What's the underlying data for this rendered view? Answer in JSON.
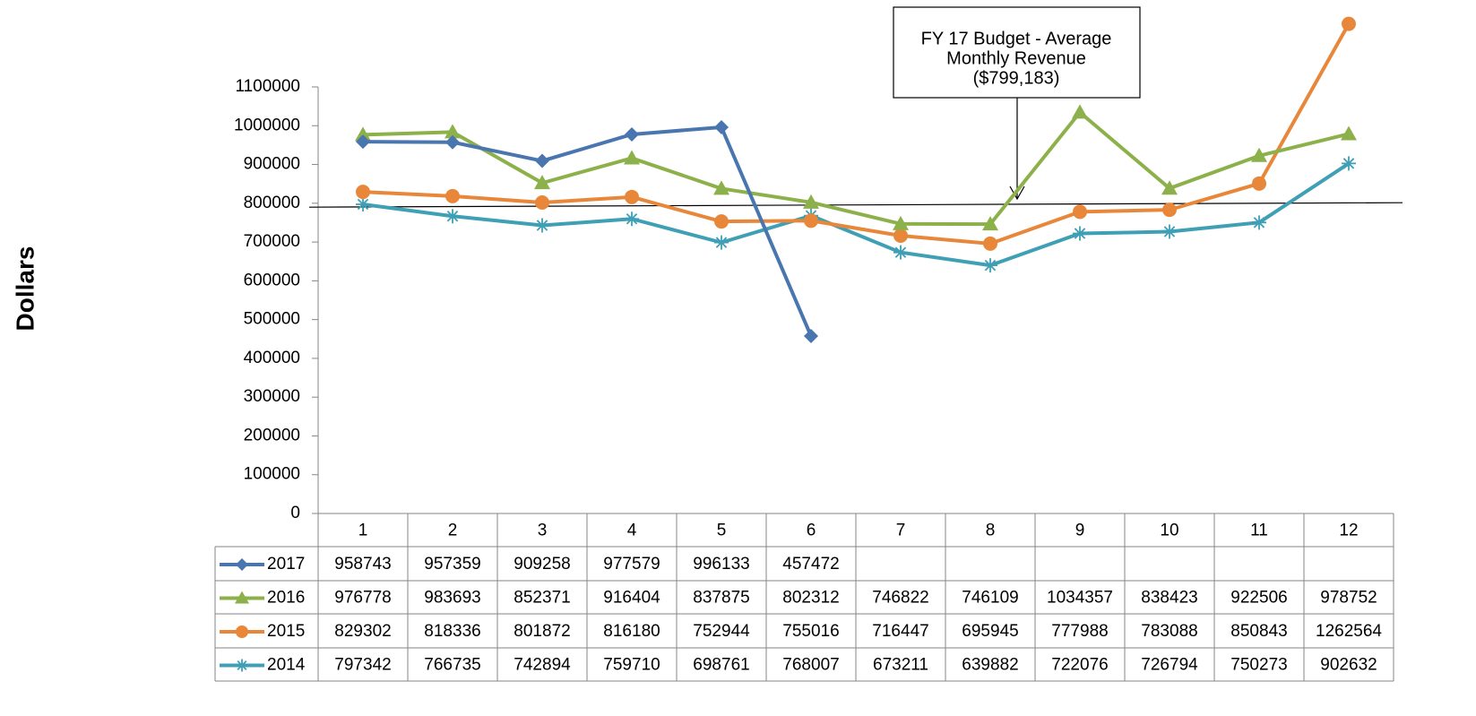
{
  "chart_data": {
    "type": "line",
    "y_label": "Dollars",
    "annotation": {
      "lines": [
        "FY 17 Budget - Average",
        "Monthly Revenue",
        "($799,183)"
      ],
      "value": 799183
    },
    "categories": [
      "1",
      "2",
      "3",
      "4",
      "5",
      "6",
      "7",
      "8",
      "9",
      "10",
      "11",
      "12"
    ],
    "ylim": [
      0,
      1100000
    ],
    "yticks": [
      0,
      100000,
      200000,
      300000,
      400000,
      500000,
      600000,
      700000,
      800000,
      900000,
      1000000,
      1100000
    ],
    "series": [
      {
        "name": "2017",
        "color": "#4a76b0",
        "marker": "diamond",
        "values": [
          958743,
          957359,
          909258,
          977579,
          996133,
          457472,
          null,
          null,
          null,
          null,
          null,
          null
        ]
      },
      {
        "name": "2016",
        "color": "#8db14a",
        "marker": "triangle",
        "values": [
          976778,
          983693,
          852371,
          916404,
          837875,
          802312,
          746822,
          746109,
          1034357,
          838423,
          922506,
          978752
        ]
      },
      {
        "name": "2015",
        "color": "#e8873a",
        "marker": "circle",
        "values": [
          829302,
          818336,
          801872,
          816180,
          752944,
          755016,
          716447,
          695945,
          777988,
          783088,
          850843,
          1262564
        ]
      },
      {
        "name": "2014",
        "color": "#3f9fb5",
        "marker": "asterisk",
        "values": [
          797342,
          766735,
          742894,
          759710,
          698761,
          768007,
          673211,
          639882,
          722076,
          726794,
          750273,
          902632
        ]
      }
    ]
  }
}
